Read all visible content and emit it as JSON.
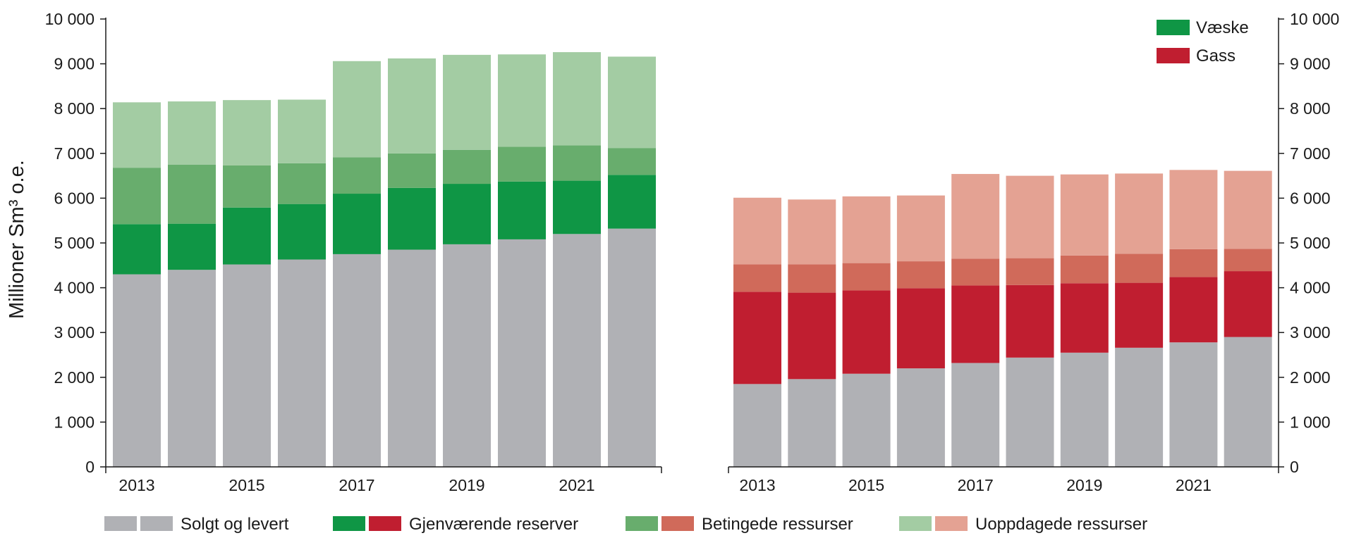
{
  "chart_data": [
    {
      "type": "bar",
      "stacked": true,
      "variant": "liquid",
      "categories": [
        "2013",
        "2014",
        "2015",
        "2016",
        "2017",
        "2018",
        "2019",
        "2020",
        "2021",
        "2022"
      ],
      "x_tick_labels": [
        "2013",
        "2015",
        "2017",
        "2019",
        "2021"
      ],
      "ylabel": "Millioner Sm³ o.e.",
      "ylim": [
        0,
        10000
      ],
      "y_tick_labels": [
        "0",
        "1 000",
        "2 000",
        "3 000",
        "4 000",
        "5 000",
        "6 000",
        "7 000",
        "8 000",
        "9 000",
        "10 000"
      ],
      "y_axis_side": "left",
      "series": [
        {
          "name": "Solgt og levert",
          "color": "#b0b1b5",
          "values": [
            4300,
            4400,
            4520,
            4630,
            4750,
            4850,
            4970,
            5080,
            5200,
            5320
          ]
        },
        {
          "name": "Gjenværende reserver",
          "color": "#0f9645",
          "values": [
            1120,
            1030,
            1270,
            1240,
            1350,
            1380,
            1350,
            1290,
            1190,
            1200
          ]
        },
        {
          "name": "Betingede ressurser",
          "color": "#68ad6d",
          "values": [
            1260,
            1320,
            940,
            910,
            810,
            770,
            760,
            780,
            790,
            600
          ]
        },
        {
          "name": "Uoppdagede ressurser",
          "color": "#a3cca3",
          "values": [
            1460,
            1410,
            1460,
            1420,
            2150,
            2120,
            2120,
            2060,
            2080,
            2040
          ]
        }
      ]
    },
    {
      "type": "bar",
      "stacked": true,
      "variant": "gas",
      "categories": [
        "2013",
        "2014",
        "2015",
        "2016",
        "2017",
        "2018",
        "2019",
        "2020",
        "2021",
        "2022"
      ],
      "x_tick_labels": [
        "2013",
        "2015",
        "2017",
        "2019",
        "2021"
      ],
      "ylim": [
        0,
        10000
      ],
      "y_tick_labels": [
        "0",
        "1 000",
        "2 000",
        "3 000",
        "4 000",
        "5 000",
        "6 000",
        "7 000",
        "8 000",
        "9 000",
        "10 000"
      ],
      "y_axis_side": "right",
      "series": [
        {
          "name": "Solgt og levert",
          "color": "#b0b1b5",
          "values": [
            1850,
            1960,
            2080,
            2200,
            2320,
            2440,
            2550,
            2660,
            2780,
            2900
          ]
        },
        {
          "name": "Gjenværende reserver",
          "color": "#c01e30",
          "values": [
            2060,
            1930,
            1860,
            1790,
            1730,
            1620,
            1550,
            1450,
            1460,
            1470
          ]
        },
        {
          "name": "Betingede ressurser",
          "color": "#d06a5a",
          "values": [
            610,
            630,
            610,
            600,
            600,
            600,
            620,
            650,
            620,
            500
          ]
        },
        {
          "name": "Uoppdagede ressurser",
          "color": "#e4a293",
          "values": [
            1490,
            1450,
            1490,
            1470,
            1890,
            1840,
            1810,
            1790,
            1770,
            1740
          ]
        }
      ]
    }
  ],
  "legend_top": {
    "placement": "top-right",
    "items": [
      {
        "label": "Væske",
        "color": "#0f9645"
      },
      {
        "label": "Gass",
        "color": "#c01e30"
      }
    ]
  },
  "legend_bottom": {
    "placement": "bottom",
    "items": [
      {
        "label": "Solgt og levert",
        "colors": [
          "#b0b1b5",
          "#b0b1b5"
        ]
      },
      {
        "label": "Gjenværende reserver",
        "colors": [
          "#0f9645",
          "#c01e30"
        ]
      },
      {
        "label": "Betingede ressurser",
        "colors": [
          "#68ad6d",
          "#d06a5a"
        ]
      },
      {
        "label": "Uoppdagede ressurser",
        "colors": [
          "#a3cca3",
          "#e4a293"
        ]
      }
    ]
  }
}
